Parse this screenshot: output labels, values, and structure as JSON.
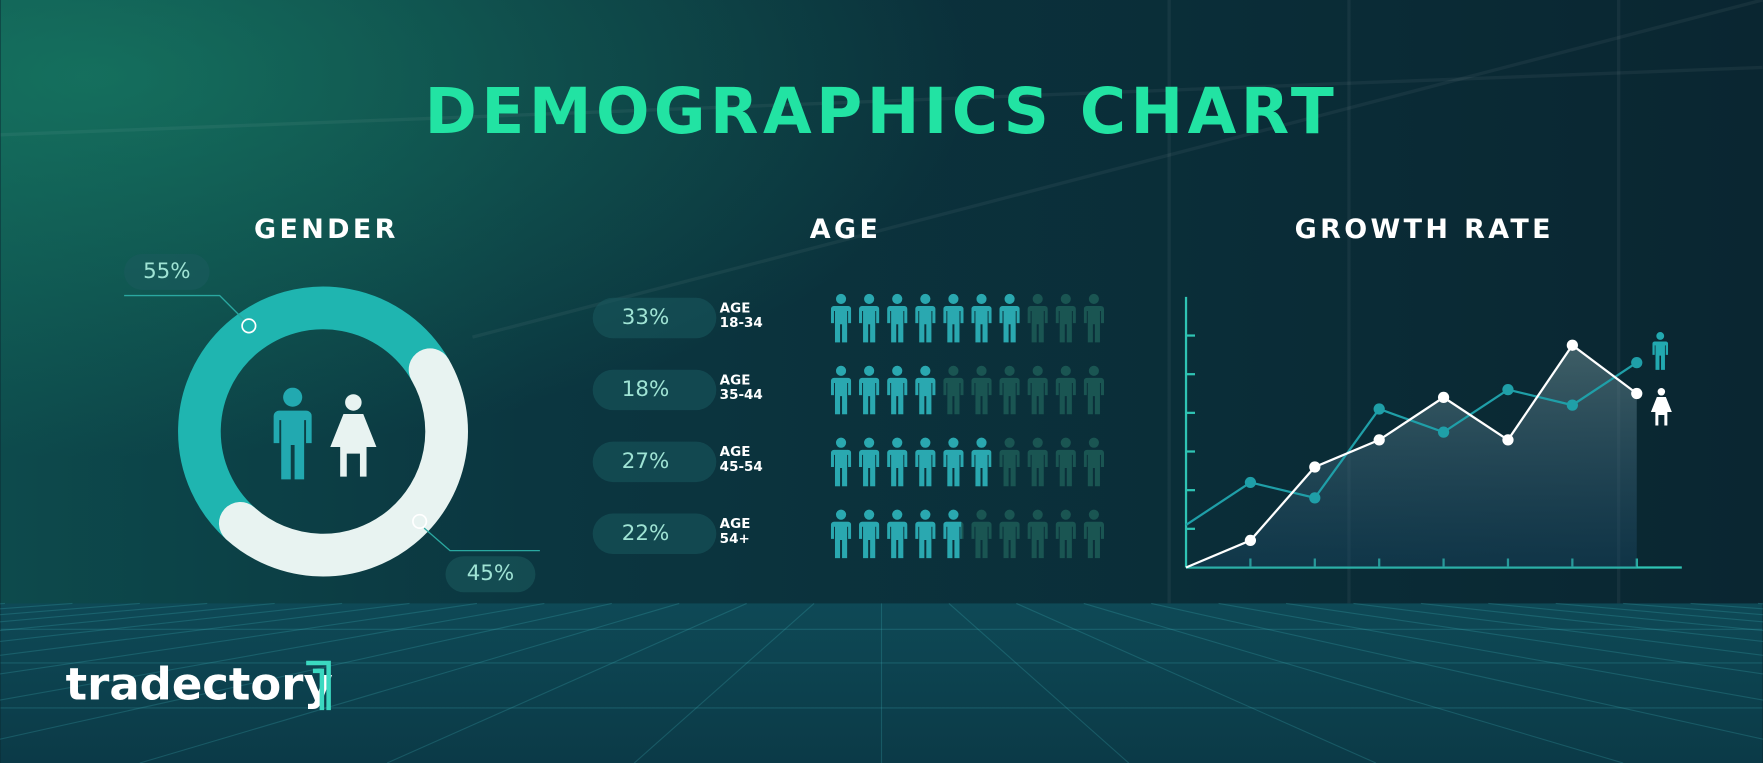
{
  "title": "DEMOGRAPHICS CHART",
  "logo": "tradectory",
  "chart_data": [
    {
      "type": "donut",
      "title": "GENDER",
      "values": [
        55,
        45
      ],
      "value_labels": [
        "55%",
        "45%"
      ],
      "colors": [
        "#1fb5b0",
        "#e8f3f1"
      ]
    },
    {
      "type": "pictogram",
      "title": "AGE",
      "categories": [
        "AGE 18-34",
        "AGE 35-44",
        "AGE 45-54",
        "AGE 54+"
      ],
      "values": [
        33,
        18,
        27,
        22
      ],
      "value_labels": [
        "33%",
        "18%",
        "27%",
        "22%"
      ],
      "xlim": [
        0,
        47
      ],
      "color": "#2aa8b0"
    },
    {
      "type": "line",
      "title": "GROWTH RATE",
      "x": [
        0,
        1,
        2,
        3,
        4,
        5,
        6,
        7
      ],
      "xlim": [
        0,
        7.7
      ],
      "xticks": [
        1,
        2,
        3,
        4,
        5,
        6,
        7
      ],
      "ylim": [
        0,
        7
      ],
      "yticks": [
        1,
        2,
        3,
        4,
        5,
        6
      ],
      "series": [
        {
          "color": "#ffffff",
          "values": [
            0,
            0.7,
            2.6,
            3.3,
            4.4,
            3.3,
            5.75,
            4.5
          ]
        },
        {
          "color": "#1f9fa8",
          "values": [
            1.1,
            2.2,
            1.8,
            4.1,
            3.5,
            4.6,
            4.2,
            5.3
          ]
        }
      ]
    }
  ]
}
